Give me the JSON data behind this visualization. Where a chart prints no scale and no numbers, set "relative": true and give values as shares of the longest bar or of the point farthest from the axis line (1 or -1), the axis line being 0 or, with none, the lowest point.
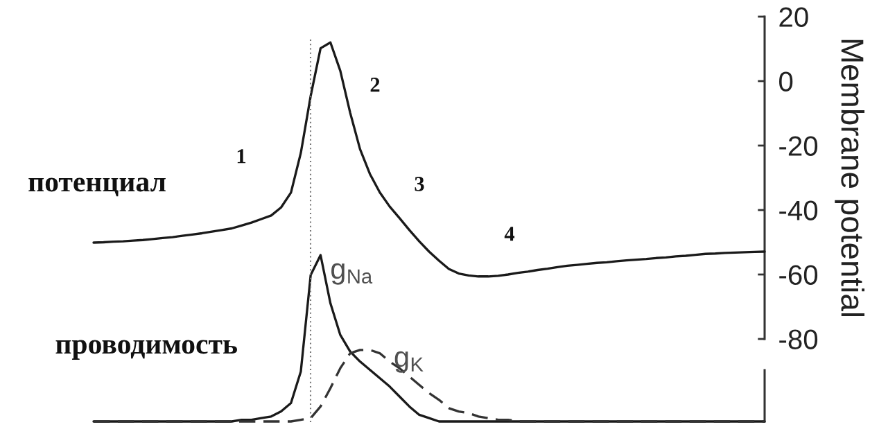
{
  "chart_data": [
    {
      "type": "line",
      "ylabel": "Membrane potential",
      "color": "#1a1a1a",
      "tick_labels": "y",
      "categories": [
        null,
        null,
        null,
        null,
        null,
        null,
        null,
        null,
        null,
        null,
        null,
        null,
        null,
        null,
        null,
        null,
        null,
        null,
        null,
        null,
        null,
        null,
        null,
        null,
        null,
        null,
        null,
        null,
        null,
        null,
        null,
        null,
        null,
        null,
        null,
        null,
        null,
        null,
        null,
        null,
        null,
        null,
        null,
        null,
        null,
        null,
        null,
        null,
        null,
        null,
        null,
        null,
        null,
        null,
        null,
        null,
        null,
        null,
        null,
        null,
        null,
        null,
        null,
        null,
        null,
        null,
        null,
        null,
        null
      ],
      "values": [
        -50.1,
        -50.0,
        -49.8,
        -49.7,
        -49.5,
        -49.3,
        -49.0,
        -48.7,
        -48.4,
        -48.0,
        -47.6,
        -47.2,
        -46.7,
        -46.2,
        -45.7,
        -44.8,
        -43.9,
        -42.8,
        -41.7,
        -39.2,
        -34.6,
        -22.3,
        -4.6,
        10.2,
        12.0,
        3.2,
        -9.8,
        -21.1,
        -28.8,
        -34.5,
        -38.9,
        -42.5,
        -46.2,
        -49.7,
        -52.9,
        -55.7,
        -58.3,
        -59.7,
        -60.3,
        -60.6,
        -60.6,
        -60.4,
        -60.0,
        -59.5,
        -59.1,
        -58.6,
        -58.2,
        -57.7,
        -57.3,
        -57.0,
        -56.7,
        -56.4,
        -56.2,
        -55.9,
        -55.6,
        -55.4,
        -55.2,
        -54.9,
        -54.7,
        -54.4,
        -54.2,
        -53.9,
        -53.6,
        -53.5,
        -53.3,
        -53.2,
        -53.1,
        -53.0,
        -52.9
      ],
      "ylim": [
        -80,
        20
      ],
      "yticks": [
        -80,
        -60,
        -40,
        -20,
        0,
        20
      ],
      "annotations": [
        "потенциал",
        "1",
        "2",
        "3",
        "4"
      ]
    },
    {
      "type": "line",
      "relative": true,
      "tick_labels": false,
      "categories": [
        null,
        null,
        null,
        null,
        null,
        null,
        null,
        null,
        null,
        null,
        null,
        null,
        null,
        null,
        null,
        null,
        null,
        null,
        null,
        null,
        null,
        null,
        null,
        null,
        null,
        null,
        null,
        null,
        null,
        null,
        null,
        null,
        null,
        null,
        null,
        null,
        null,
        null,
        null,
        null,
        null,
        null,
        null,
        null,
        null,
        null,
        null,
        null,
        null,
        null,
        null,
        null,
        null,
        null,
        null,
        null,
        null,
        null,
        null,
        null,
        null,
        null,
        null,
        null,
        null,
        null,
        null,
        null,
        null
      ],
      "series": [
        {
          "name": "g$_{Na}$",
          "color": "#1a1a1a",
          "line_style": "solid",
          "values": [
            0,
            0,
            0,
            0,
            0,
            0,
            0,
            0,
            0,
            0,
            0,
            0,
            0,
            0,
            0,
            0.01,
            0.01,
            0.02,
            0.03,
            0.06,
            0.11,
            0.3,
            0.88,
            1,
            0.71,
            0.52,
            0.42,
            0.36,
            0.31,
            0.26,
            0.21,
            0.15,
            0.09,
            0.04,
            0.02,
            0,
            0,
            0,
            0,
            0,
            0,
            0,
            0,
            0,
            0,
            0,
            0,
            0,
            0,
            0,
            0,
            0,
            0,
            0,
            0,
            0,
            0,
            0,
            0,
            0,
            0,
            0,
            0,
            0,
            0,
            0,
            0,
            0,
            0
          ]
        },
        {
          "name": "g$_{K}$",
          "color": "#333333",
          "line_style": "dashed",
          "values": [
            0,
            0,
            0,
            0,
            0,
            0,
            0,
            0,
            0,
            0,
            0,
            0,
            0,
            0,
            0,
            0,
            0,
            0,
            0,
            0,
            0,
            0.01,
            0.02,
            0.09,
            0.2,
            0.32,
            0.41,
            0.43,
            0.43,
            0.41,
            0.36,
            0.32,
            0.27,
            0.22,
            0.17,
            0.13,
            0.08,
            0.06,
            0.05,
            0.03,
            0.02,
            0.01,
            0.01,
            0,
            0,
            0,
            0,
            0,
            0,
            0,
            0,
            0,
            0,
            0,
            0,
            0,
            0,
            0,
            0,
            0,
            0,
            0,
            0,
            0,
            0,
            0,
            0,
            0,
            0
          ]
        }
      ],
      "annotations": [
        "проводимость"
      ]
    }
  ]
}
